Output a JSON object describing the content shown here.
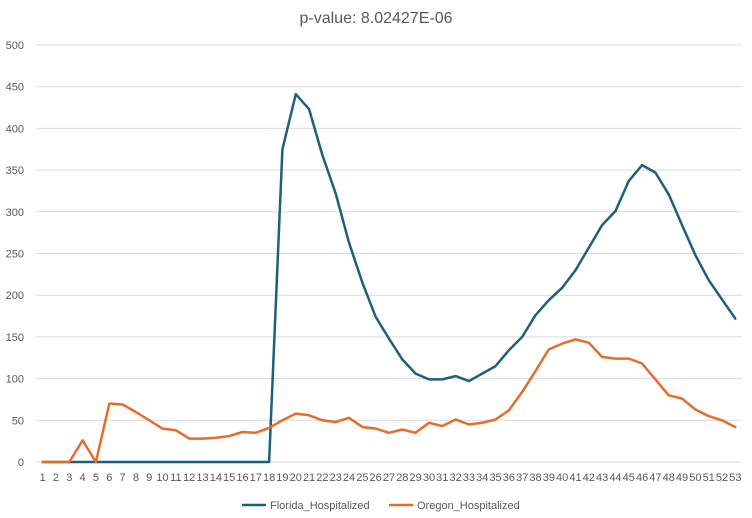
{
  "chart_data": {
    "type": "line",
    "title": "p-value: 8.02427E-06",
    "xlabel": "",
    "ylabel": "",
    "ylim": [
      0,
      500
    ],
    "yticks": [
      0,
      50,
      100,
      150,
      200,
      250,
      300,
      350,
      400,
      450,
      500
    ],
    "categories": [
      "1",
      "2",
      "3",
      "4",
      "5",
      "6",
      "7",
      "8",
      "9",
      "10",
      "11",
      "12",
      "13",
      "14",
      "15",
      "16",
      "17",
      "18",
      "19",
      "20",
      "21",
      "22",
      "23",
      "24",
      "25",
      "26",
      "27",
      "28",
      "29",
      "30",
      "31",
      "32",
      "33",
      "34",
      "35",
      "36",
      "37",
      "38",
      "39",
      "40",
      "41",
      "42",
      "43",
      "44",
      "45",
      "46",
      "47",
      "48",
      "49",
      "50",
      "51",
      "52",
      "53"
    ],
    "grid": "horizontal",
    "legend_position": "bottom",
    "series": [
      {
        "name": "Florida_Hospitalized",
        "color": "#1f5f7e",
        "values": [
          0,
          0,
          0,
          0,
          0,
          0,
          0,
          0,
          0,
          0,
          0,
          0,
          0,
          0,
          0,
          0,
          0,
          0,
          375,
          441,
          423,
          368,
          322,
          263,
          215,
          174,
          148,
          123,
          106,
          99,
          99,
          103,
          97,
          106,
          115,
          134,
          150,
          176,
          194,
          209,
          230,
          257,
          284,
          301,
          337,
          356,
          347,
          321,
          284,
          248,
          218,
          195,
          172
        ]
      },
      {
        "name": "Oregon_Hospitalized",
        "color": "#e46d2b",
        "values": [
          0,
          0,
          0,
          26,
          0,
          70,
          69,
          60,
          50,
          40,
          38,
          28,
          28,
          29,
          31,
          36,
          35,
          41,
          50,
          58,
          56,
          50,
          48,
          53,
          42,
          40,
          35,
          39,
          35,
          47,
          43,
          51,
          45,
          47,
          51,
          62,
          84,
          109,
          135,
          142,
          147,
          143,
          126,
          124,
          124,
          118,
          99,
          80,
          76,
          63,
          55,
          50,
          42
        ]
      }
    ]
  }
}
